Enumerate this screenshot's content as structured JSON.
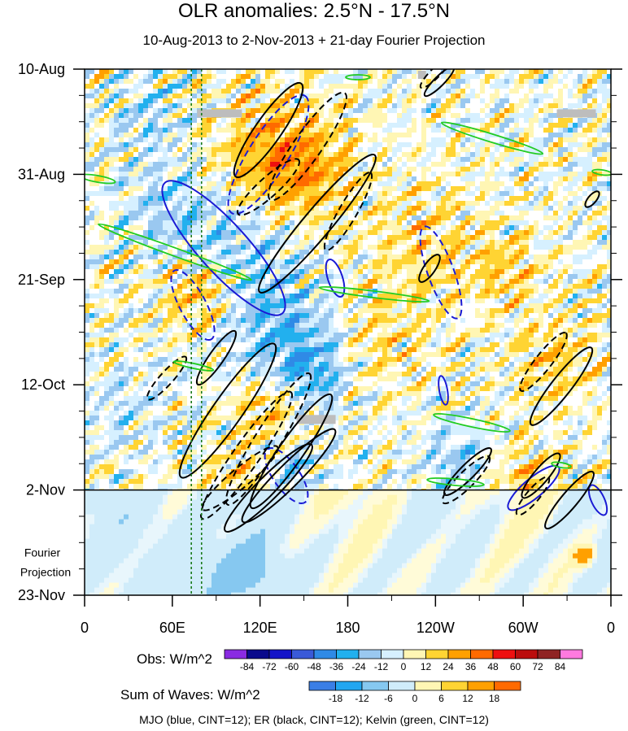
{
  "chart_data": {
    "type": "heatmap",
    "title": "OLR anomalies: 2.5°N - 17.5°N",
    "subtitle": "10-Aug-2013 to 2-Nov-2013 + 21-day Fourier Projection",
    "y_ticks": [
      "10-Aug",
      "31-Aug",
      "21-Sep",
      "12-Oct",
      "2-Nov",
      "23-Nov"
    ],
    "y_dates": [
      "2013-08-10",
      "2013-08-31",
      "2013-09-21",
      "2013-10-12",
      "2013-11-02",
      "2013-11-23"
    ],
    "x_ticks": [
      "0",
      "60E",
      "120E",
      "180",
      "120W",
      "60W",
      "0"
    ],
    "x_range_deg_east": [
      0,
      360
    ],
    "projection_label_line1": "Fourier",
    "projection_label_line2": "Projection",
    "projection_start": "2-Nov",
    "obs_colorbar": {
      "label": "Obs: W/m^2",
      "ticks": [
        "-84",
        "-72",
        "-60",
        "-48",
        "-36",
        "-24",
        "-12",
        "0",
        "12",
        "24",
        "36",
        "48",
        "60",
        "72",
        "84"
      ],
      "colors": [
        "#8a2be2",
        "#0a0a8c",
        "#1414c8",
        "#3a5ad8",
        "#2f8ae6",
        "#22b0ee",
        "#9ac8f0",
        "#d6f0ff",
        "#fff6b4",
        "#ffd433",
        "#ffa000",
        "#ff6a00",
        "#ee1010",
        "#bb0d0d",
        "#8f2323",
        "#ff7adf"
      ]
    },
    "sum_colorbar": {
      "label": "Sum of Waves: W/m^2",
      "ticks": [
        "-18",
        "-12",
        "-6",
        "0",
        "6",
        "12",
        "18"
      ],
      "colors": [
        "#3a7ee6",
        "#22a6f0",
        "#86c8f0",
        "#d0ecfa",
        "#fff6b4",
        "#ffd433",
        "#ffa000",
        "#ff6a00"
      ]
    },
    "footnote": "MJO (blue, CINT=12); ER (black, CINT=12); Kelvin (green, CINT=12)",
    "colors": {
      "mjo": "#1a1ad4",
      "er": "#000000",
      "kelvin": "#22cc22",
      "missing": "#bdbdbd",
      "marker_lines": "#1a7a1a"
    },
    "marker_longitudes_deg_east": [
      73,
      80
    ]
  }
}
